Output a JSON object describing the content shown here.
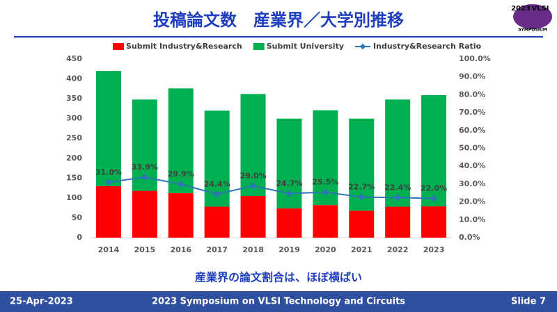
{
  "header": {
    "title": "投稿論文数　産業界／大学別推移",
    "logo": {
      "year": "2023",
      "name": "VLSI",
      "sub": "SYMPOSIUM"
    }
  },
  "chart_data": {
    "type": "bar",
    "categories": [
      "2014",
      "2015",
      "2016",
      "2017",
      "2018",
      "2019",
      "2020",
      "2021",
      "2022",
      "2023"
    ],
    "stacked": true,
    "series": [
      {
        "name": "Submit Industry&Research",
        "color": "#ff0000",
        "values": [
          130,
          118,
          112,
          78,
          105,
          74,
          82,
          68,
          78,
          79
        ]
      },
      {
        "name": "Submit University",
        "color": "#00b050",
        "values": [
          290,
          230,
          264,
          242,
          257,
          226,
          239,
          232,
          270,
          280
        ]
      },
      {
        "name": "Industry&Research Ratio",
        "color": "#2e75b6",
        "type": "line",
        "axis": "y2",
        "values": [
          31.0,
          33.9,
          29.9,
          24.4,
          29.0,
          24.7,
          25.5,
          22.7,
          22.4,
          22.0
        ],
        "value_labels": [
          "31.0%",
          "33.9%",
          "29.9%",
          "24.4%",
          "29.0%",
          "24.7%",
          "25.5%",
          "22.7%",
          "22.4%",
          "22.0%"
        ]
      }
    ],
    "ylim": [
      0,
      450
    ],
    "yticks": [
      0,
      50,
      100,
      150,
      200,
      250,
      300,
      350,
      400,
      450
    ],
    "y2lim": [
      0,
      100
    ],
    "y2ticks": [
      {
        "value": 0,
        "label": "0.0%"
      },
      {
        "value": 10,
        "label": "10.0%"
      },
      {
        "value": 20,
        "label": "20.0%"
      },
      {
        "value": 30,
        "label": "30.0%"
      },
      {
        "value": 40,
        "label": "40.0%"
      },
      {
        "value": 50,
        "label": "50.0%"
      },
      {
        "value": 60,
        "label": "60.0%"
      },
      {
        "value": 70,
        "label": "70.0%"
      },
      {
        "value": 80,
        "label": "80.0%"
      },
      {
        "value": 90,
        "label": "90.0%"
      },
      {
        "value": 100,
        "label": "100.0%"
      }
    ],
    "legend": "top"
  },
  "caption": "産業界の論文割合は、ほぼ横ばい",
  "footer": {
    "date": "25-Apr-2023",
    "event": "2023 Symposium on VLSI Technology and Circuits",
    "slide": "Slide 7"
  }
}
